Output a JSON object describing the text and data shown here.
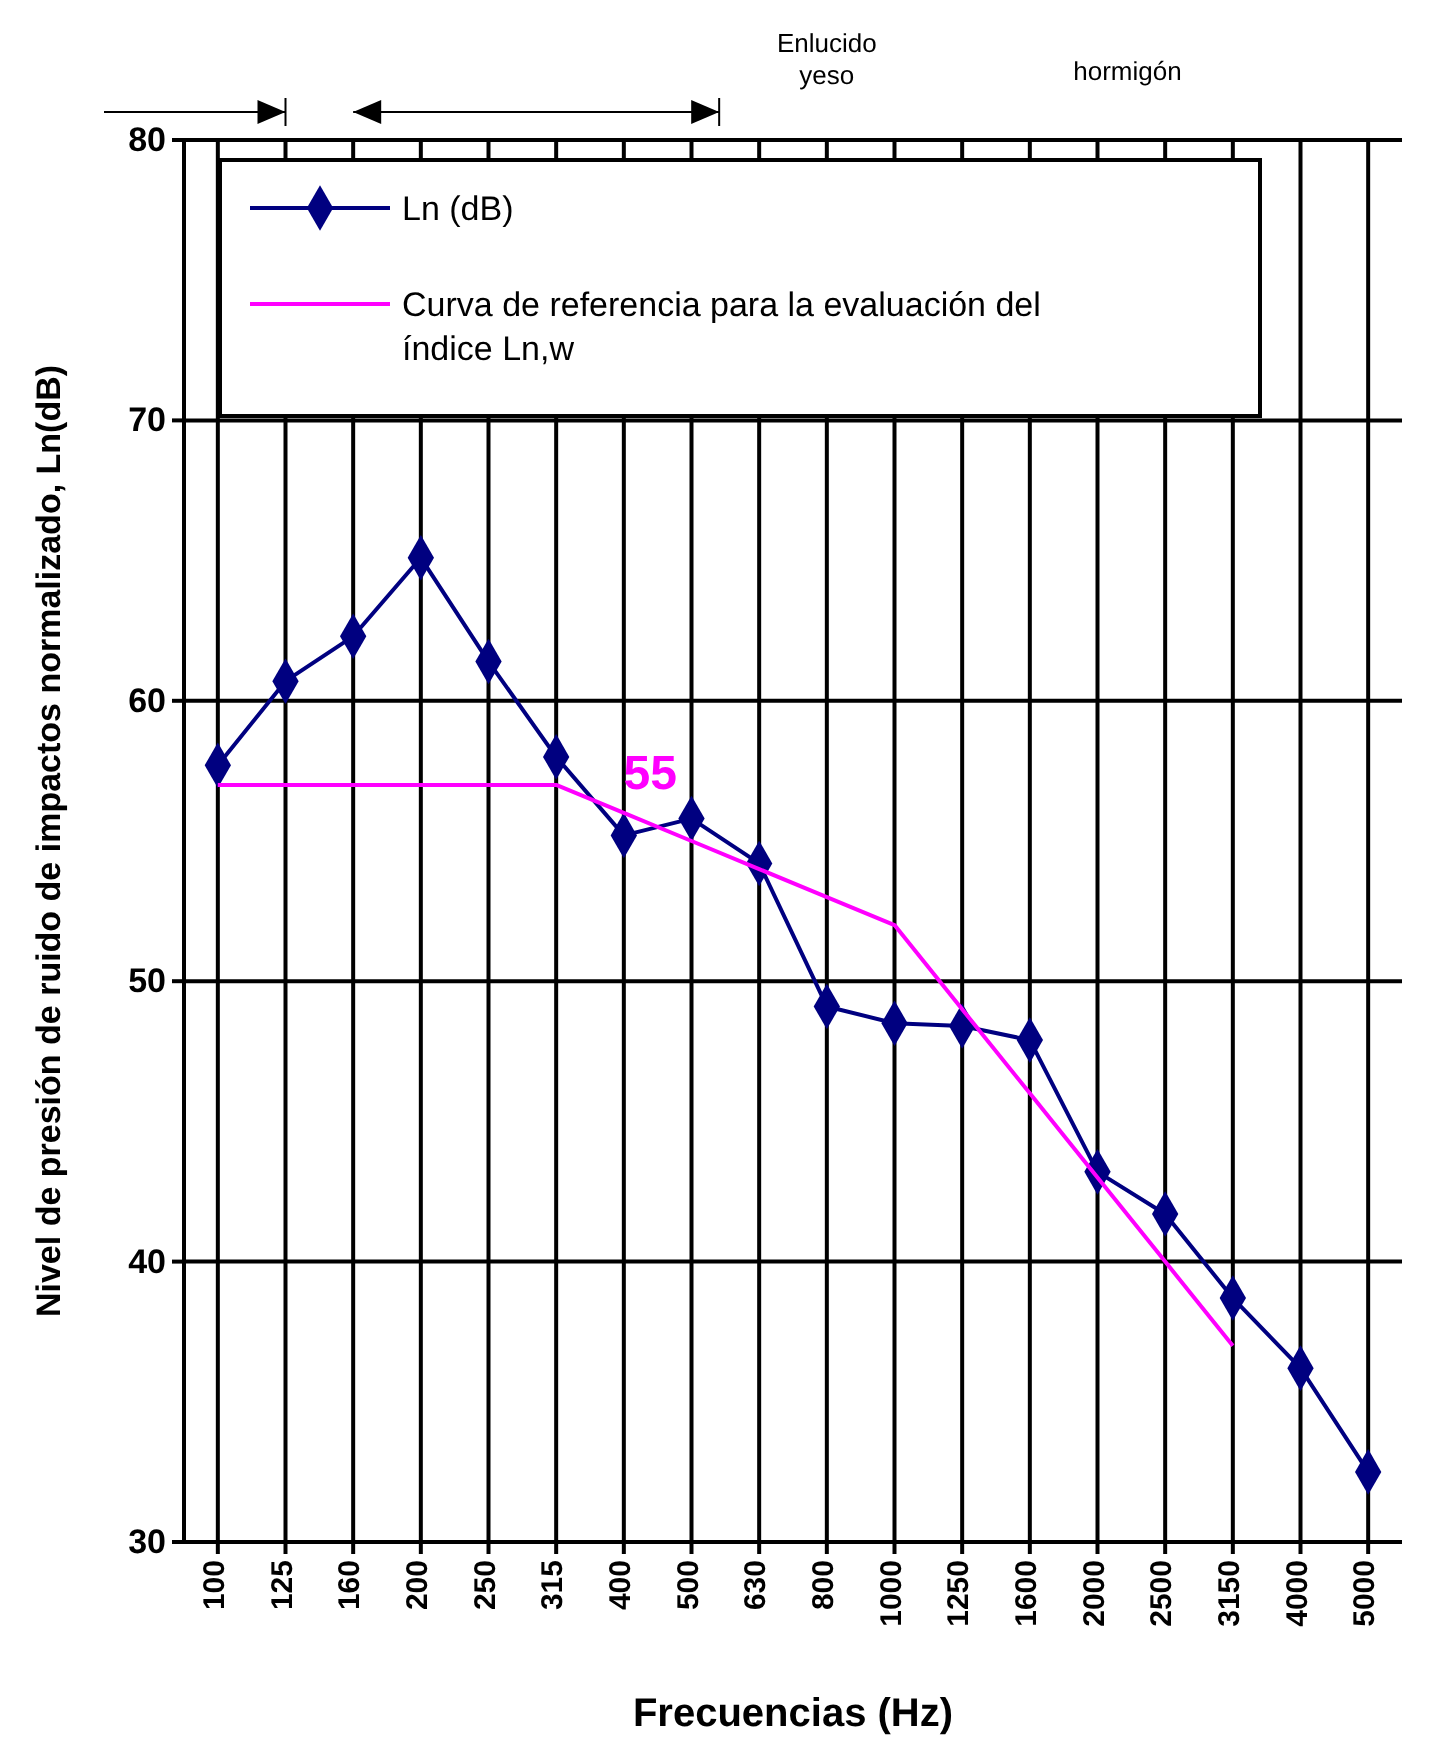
{
  "chart_data": {
    "type": "line",
    "xlabel": "Frecuencias (Hz)",
    "ylabel": "Nivel de presión de ruido de impactos normalizado, Ln(dB)",
    "categories": [
      "100",
      "125",
      "160",
      "200",
      "250",
      "315",
      "400",
      "500",
      "630",
      "800",
      "1000",
      "1250",
      "1600",
      "2000",
      "2500",
      "3150",
      "4000",
      "5000"
    ],
    "series": [
      {
        "name": "Ln (dB)",
        "color": "#000080",
        "marker": "diamond",
        "values": [
          57.7,
          60.7,
          62.3,
          65.1,
          61.4,
          58.0,
          55.2,
          55.8,
          54.2,
          49.1,
          48.5,
          48.4,
          47.9,
          43.2,
          41.7,
          38.7,
          36.2,
          32.5
        ]
      },
      {
        "name": "Curva de referencia para la evaluación del índice Ln,w",
        "color": "#ff00ff",
        "marker": "none",
        "values": [
          57,
          57,
          57,
          57,
          57,
          57,
          56,
          55,
          54,
          53,
          52,
          49,
          46,
          43,
          40,
          37,
          null,
          null
        ]
      }
    ],
    "ylim": [
      30,
      80
    ],
    "yticks": [
      30,
      40,
      50,
      60,
      70,
      80
    ],
    "grid": true,
    "legend": "top",
    "annotations": [
      {
        "text": "55",
        "x": "500",
        "y": 55
      },
      "Enlucido yeso",
      "hormigón"
    ]
  }
}
